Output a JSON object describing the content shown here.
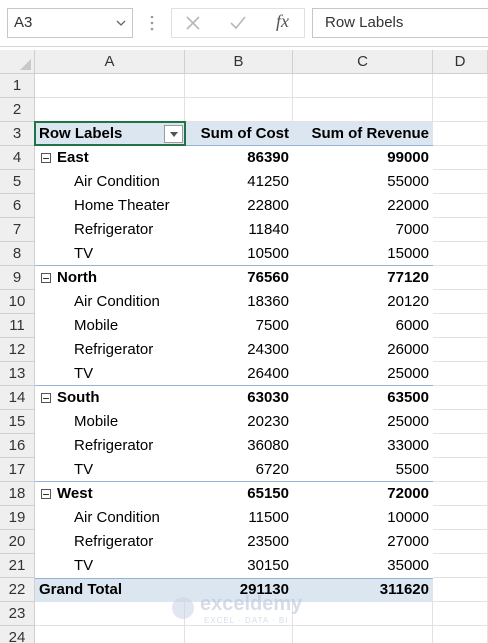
{
  "name_box": "A3",
  "formula_bar": {
    "fx": "fx",
    "content": "Row Labels"
  },
  "column_headers": [
    "A",
    "B",
    "C",
    "D"
  ],
  "row_numbers": [
    1,
    2,
    3,
    4,
    5,
    6,
    7,
    8,
    9,
    10,
    11,
    12,
    13,
    14,
    15,
    16,
    17,
    18,
    19,
    20,
    21,
    22,
    23,
    24
  ],
  "pivot": {
    "header": [
      "Row Labels",
      "Sum of Cost",
      "Sum of Revenue"
    ],
    "groups": [
      {
        "label": "East",
        "cost": 86390,
        "revenue": 99000,
        "items": [
          {
            "label": "Air Condition",
            "cost": 41250,
            "revenue": 55000
          },
          {
            "label": "Home Theater",
            "cost": 22800,
            "revenue": 22000
          },
          {
            "label": "Refrigerator",
            "cost": 11840,
            "revenue": 7000
          },
          {
            "label": "TV",
            "cost": 10500,
            "revenue": 15000
          }
        ]
      },
      {
        "label": "North",
        "cost": 76560,
        "revenue": 77120,
        "items": [
          {
            "label": "Air Condition",
            "cost": 18360,
            "revenue": 20120
          },
          {
            "label": "Mobile",
            "cost": 7500,
            "revenue": 6000
          },
          {
            "label": "Refrigerator",
            "cost": 24300,
            "revenue": 26000
          },
          {
            "label": "TV",
            "cost": 26400,
            "revenue": 25000
          }
        ]
      },
      {
        "label": "South",
        "cost": 63030,
        "revenue": 63500,
        "items": [
          {
            "label": "Mobile",
            "cost": 20230,
            "revenue": 25000
          },
          {
            "label": "Refrigerator",
            "cost": 36080,
            "revenue": 33000
          },
          {
            "label": "TV",
            "cost": 6720,
            "revenue": 5500
          }
        ]
      },
      {
        "label": "West",
        "cost": 65150,
        "revenue": 72000,
        "items": [
          {
            "label": "Air Condition",
            "cost": 11500,
            "revenue": 10000
          },
          {
            "label": "Refrigerator",
            "cost": 23500,
            "revenue": 27000
          },
          {
            "label": "TV",
            "cost": 30150,
            "revenue": 35000
          }
        ]
      }
    ],
    "grand_total": {
      "label": "Grand Total",
      "cost": 291130,
      "revenue": 311620
    }
  },
  "watermark": {
    "brand": "exceldemy",
    "tagline": "EXCEL · DATA · BI"
  }
}
